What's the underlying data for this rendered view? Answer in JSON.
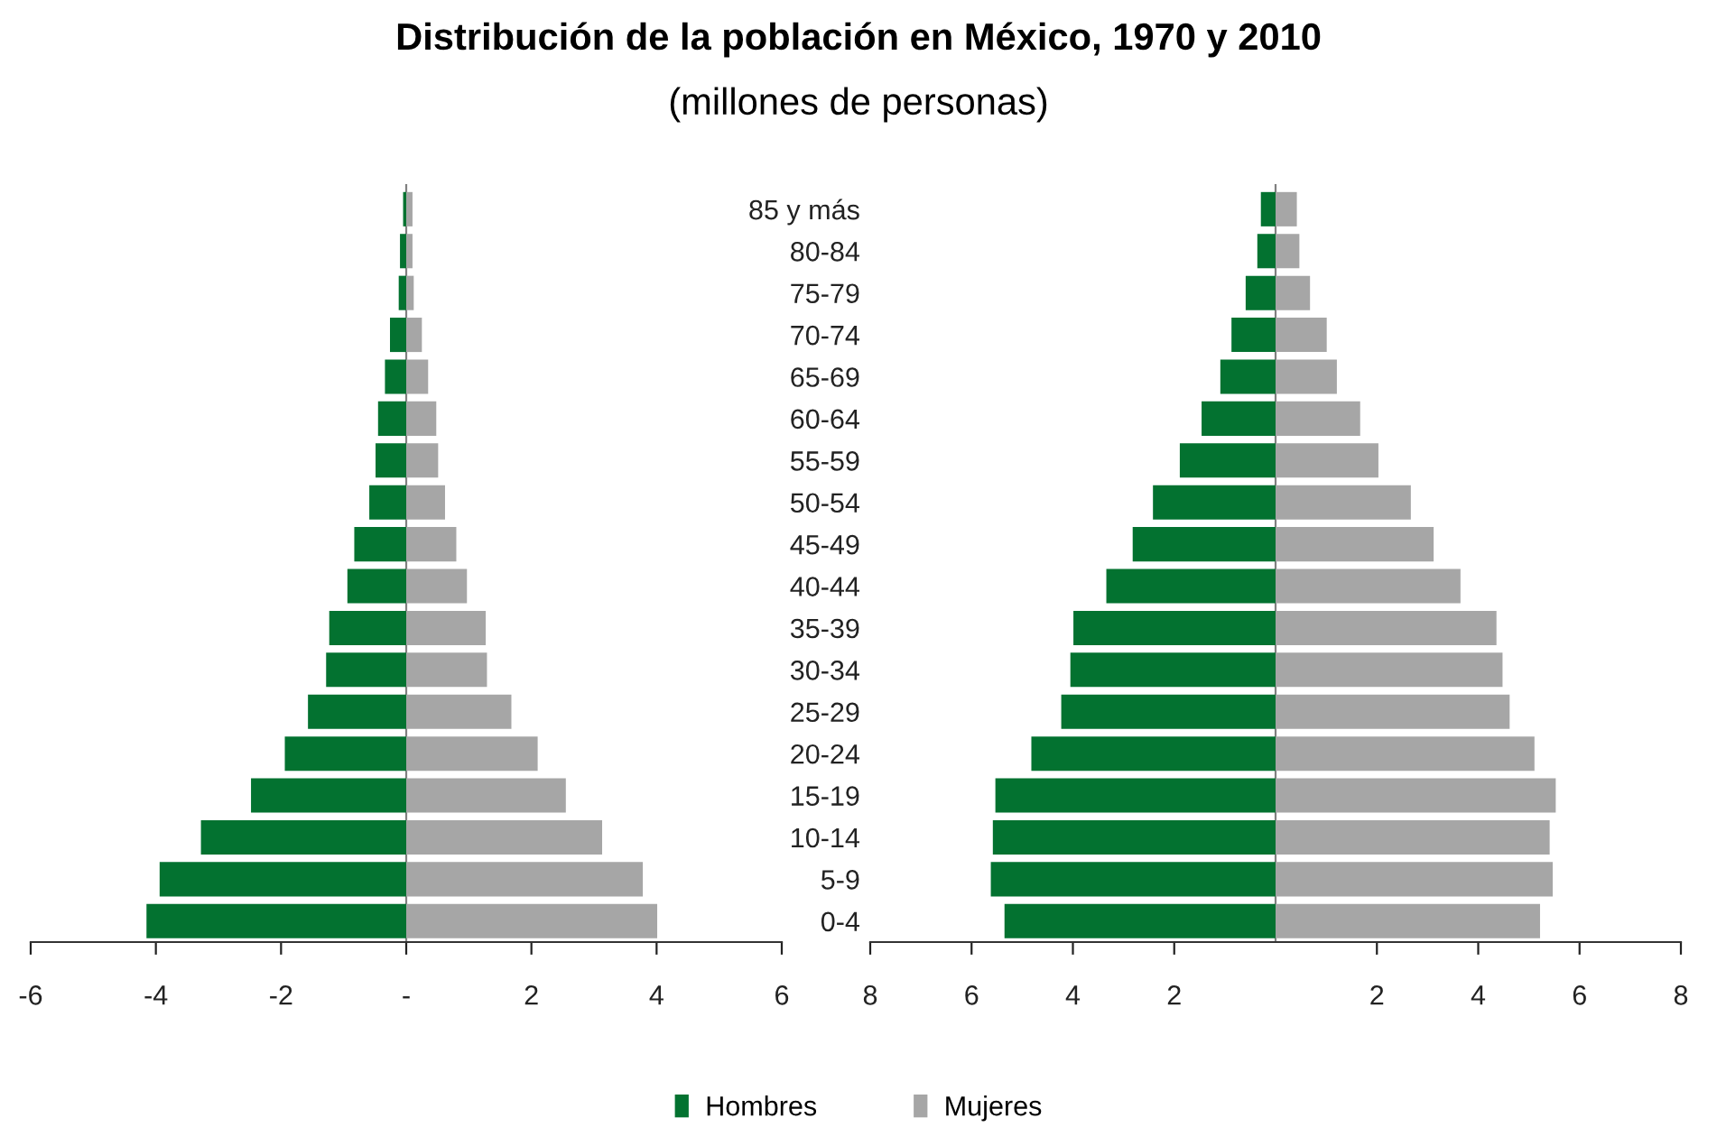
{
  "chart_data": [
    {
      "type": "bar",
      "orientation": "horizontal",
      "title": "Distribución de la población en México, 1970 y 2010",
      "subtitle": "(millones de personas)",
      "categories": [
        null,
        null,
        null,
        null,
        null,
        null,
        null,
        null,
        null,
        null,
        null,
        null,
        null,
        null,
        null,
        null,
        null,
        null
      ],
      "series": [
        {
          "name": "Hombres",
          "color": "#037230",
          "values": [
            -0.05,
            -0.1,
            -0.12,
            -0.26,
            -0.34,
            -0.45,
            -0.49,
            -0.59,
            -0.83,
            -0.94,
            -1.23,
            -1.28,
            -1.57,
            -1.94,
            -2.48,
            -3.28,
            -3.94,
            -4.15
          ]
        },
        {
          "name": "Mujeres",
          "color": "#a6a6a6",
          "values": [
            0.1,
            0.1,
            0.12,
            0.25,
            0.35,
            0.48,
            0.51,
            0.62,
            0.8,
            0.97,
            1.27,
            1.29,
            1.68,
            2.1,
            2.55,
            3.13,
            3.78,
            4.01
          ]
        }
      ],
      "stacked": true,
      "xlim": [
        -6,
        6
      ],
      "xticks": [
        -6,
        -4,
        -2,
        {
          "value": 0,
          "label": "-"
        },
        2,
        4,
        6
      ],
      "legend": "bottom"
    },
    {
      "type": "bar",
      "orientation": "horizontal",
      "categories": [
        "85 y más",
        "80-84",
        "75-79",
        "70-74",
        "65-69",
        "60-64",
        "55-59",
        "50-54",
        "45-49",
        "40-44",
        "35-39",
        "30-34",
        "25-29",
        "20-24",
        "15-19",
        "10-14",
        "5-9",
        "0-4"
      ],
      "series": [
        {
          "name": "Hombres",
          "color": "#037230",
          "values": [
            -0.29,
            -0.36,
            -0.59,
            -0.87,
            -1.09,
            -1.46,
            -1.89,
            -2.42,
            -2.82,
            -3.34,
            -3.99,
            -4.05,
            -4.23,
            -4.82,
            -5.53,
            -5.58,
            -5.62,
            -5.35
          ]
        },
        {
          "name": "Mujeres",
          "color": "#a6a6a6",
          "values": [
            0.42,
            0.47,
            0.68,
            1.01,
            1.21,
            1.67,
            2.03,
            2.67,
            3.12,
            3.65,
            4.36,
            4.48,
            4.62,
            5.11,
            5.53,
            5.41,
            5.47,
            5.22
          ]
        }
      ],
      "stacked": true,
      "xlim": [
        -8,
        8
      ],
      "xticks": [
        {
          "value": -8,
          "label": "8"
        },
        {
          "value": -6,
          "label": "6"
        },
        {
          "value": -4,
          "label": "4"
        },
        {
          "value": -2,
          "label": "2"
        },
        2,
        4,
        6,
        8
      ]
    }
  ]
}
